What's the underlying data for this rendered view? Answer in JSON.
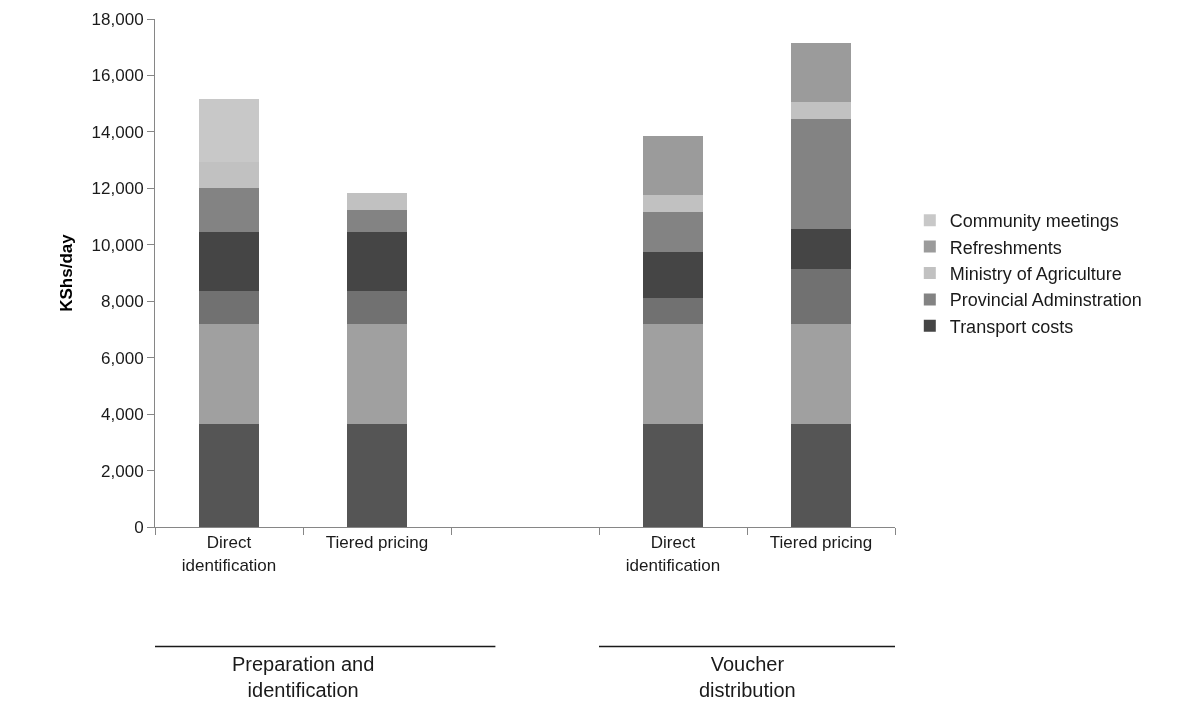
{
  "chart_data": {
    "type": "bar",
    "stacked": true,
    "ylabel": "KShs/day",
    "categories": [
      "Direct identification",
      "Tiered pricing",
      null,
      "Direct identification",
      "Tiered pricing"
    ],
    "series": [
      {
        "color": "#555555",
        "values": [
          3650,
          3650,
          null,
          3650,
          3650
        ]
      },
      {
        "color": "#a0a0a0",
        "values": [
          3550,
          3550,
          null,
          3550,
          3550
        ]
      },
      {
        "color": "#717171",
        "values": [
          1150,
          1150,
          null,
          900,
          1950
        ]
      },
      {
        "name": "Transport costs",
        "color": "#454545",
        "values": [
          2100,
          2100,
          null,
          1650,
          1400
        ]
      },
      {
        "name": "Provincial Adminstration",
        "color": "#838383",
        "values": [
          1550,
          800,
          null,
          1400,
          3900
        ]
      },
      {
        "name": "Ministry of Agriculture",
        "color": "#c1c1c1",
        "values": [
          950,
          600,
          null,
          600,
          600
        ]
      },
      {
        "name": "Refreshments",
        "color": "#9b9b9b",
        "values": [
          0,
          0,
          null,
          2100,
          2100
        ]
      },
      {
        "name": "Community meetings",
        "color": "#c8c8c8",
        "values": [
          2200,
          0,
          null,
          0,
          0
        ]
      }
    ],
    "ylim": [
      0,
      18000
    ],
    "yticks": [
      0,
      {
        "value": 2000,
        "label": "2,000"
      },
      {
        "value": 4000,
        "label": "4,000"
      },
      {
        "value": 6000,
        "label": "6,000"
      },
      {
        "value": 8000,
        "label": "8,000"
      },
      {
        "value": 10000,
        "label": "10,000"
      },
      {
        "value": 12000,
        "label": "12,000"
      },
      {
        "value": 14000,
        "label": "14,000"
      },
      {
        "value": 16000,
        "label": "16,000"
      },
      {
        "value": 18000,
        "label": "18,000"
      }
    ],
    "grid": false,
    "legend": "right",
    "annotations": [
      "Preparation and identification",
      "Voucher distribution"
    ]
  }
}
